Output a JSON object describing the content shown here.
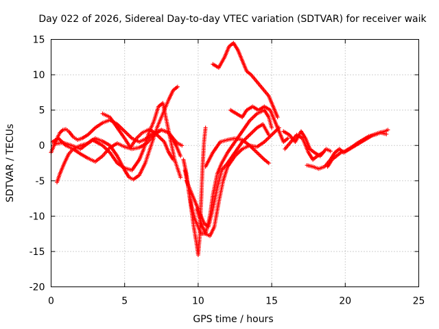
{
  "chart_data": {
    "type": "scatter",
    "title": "Day 022 of 2026, Sidereal Day-to-day VTEC variation (SDTVAR) for receiver waik",
    "xlabel": "GPS time / hours",
    "ylabel": "SDTVAR / TECUs",
    "xlim": [
      0,
      25
    ],
    "ylim": [
      -20,
      15
    ],
    "xticks": [
      0,
      5,
      10,
      15,
      20,
      25
    ],
    "yticks": [
      -20,
      -15,
      -10,
      -5,
      0,
      5,
      10,
      15
    ],
    "grid": true,
    "legend": "none",
    "marker": "+",
    "color": "#ff0000",
    "series": [
      {
        "points": [
          [
            0,
            -1
          ],
          [
            0.2,
            0
          ],
          [
            0.4,
            1
          ],
          [
            0.6,
            1.8
          ],
          [
            0.8,
            2.2
          ],
          [
            1.0,
            2.3
          ],
          [
            1.2,
            2.0
          ],
          [
            1.5,
            1.2
          ],
          [
            1.8,
            0.8
          ],
          [
            2.1,
            1.0
          ],
          [
            2.5,
            1.5
          ],
          [
            3.0,
            2.5
          ],
          [
            3.5,
            3.2
          ],
          [
            4.0,
            3.6
          ],
          [
            4.5,
            3.0
          ],
          [
            5.0,
            2.0
          ],
          [
            5.5,
            1.0
          ],
          [
            6.0,
            0.5
          ],
          [
            6.5,
            1.0
          ],
          [
            7.0,
            1.8
          ],
          [
            7.5,
            2.2
          ],
          [
            8.0,
            1.8
          ],
          [
            8.3,
            1.0
          ],
          [
            8.6,
            0.3
          ],
          [
            8.9,
            0.0
          ]
        ]
      },
      {
        "points": [
          [
            0.4,
            -5.2
          ],
          [
            0.6,
            -4.0
          ],
          [
            0.9,
            -2.5
          ],
          [
            1.2,
            -1.2
          ],
          [
            1.5,
            -0.5
          ],
          [
            2.0,
            0.0
          ],
          [
            2.5,
            0.3
          ],
          [
            3.0,
            1.0
          ],
          [
            3.5,
            0.6
          ],
          [
            4.0,
            0.0
          ],
          [
            4.5,
            -1.5
          ],
          [
            5.0,
            -3.5
          ],
          [
            5.3,
            -4.5
          ],
          [
            5.6,
            -4.8
          ],
          [
            6.0,
            -4.2
          ],
          [
            6.4,
            -2.5
          ],
          [
            6.8,
            0.0
          ],
          [
            7.2,
            2.5
          ],
          [
            7.6,
            4.5
          ],
          [
            8.0,
            6.5
          ],
          [
            8.3,
            7.8
          ],
          [
            8.6,
            8.3
          ]
        ]
      },
      {
        "points": [
          [
            0.1,
            0.5
          ],
          [
            0.5,
            1.0
          ],
          [
            1.0,
            0.0
          ],
          [
            1.5,
            -0.5
          ],
          [
            2.0,
            -1.2
          ],
          [
            2.5,
            -1.8
          ],
          [
            3.0,
            -2.3
          ],
          [
            3.5,
            -1.5
          ],
          [
            4.0,
            -0.3
          ],
          [
            4.5,
            0.3
          ],
          [
            5.0,
            -0.2
          ],
          [
            5.5,
            -0.5
          ],
          [
            6.0,
            -0.3
          ],
          [
            6.5,
            0.3
          ],
          [
            7.0,
            1.5
          ],
          [
            7.5,
            2.2
          ],
          [
            8.0,
            1.8
          ],
          [
            8.5,
            0.0
          ],
          [
            8.8,
            -1.5
          ]
        ]
      },
      {
        "points": [
          [
            0.2,
            0.2
          ],
          [
            0.8,
            0.4
          ],
          [
            1.4,
            0.0
          ],
          [
            2.0,
            -0.5
          ],
          [
            2.8,
            0.8
          ],
          [
            3.5,
            0.0
          ],
          [
            4.0,
            -1.0
          ],
          [
            4.5,
            -2.5
          ],
          [
            5.0,
            -3.2
          ],
          [
            5.5,
            -3.5
          ],
          [
            6.0,
            -2.0
          ],
          [
            6.3,
            -0.5
          ],
          [
            6.6,
            1.5
          ],
          [
            7.0,
            3.5
          ],
          [
            7.3,
            5.5
          ],
          [
            7.6,
            6.0
          ],
          [
            8.0,
            2.0
          ],
          [
            8.4,
            -2.0
          ],
          [
            8.8,
            -4.5
          ]
        ]
      },
      {
        "points": [
          [
            3.5,
            4.5
          ],
          [
            4.0,
            4.0
          ],
          [
            4.5,
            2.5
          ],
          [
            5.0,
            1.0
          ],
          [
            5.4,
            -0.3
          ],
          [
            5.8,
            1.0
          ],
          [
            6.2,
            1.8
          ],
          [
            6.7,
            2.3
          ],
          [
            7.2,
            1.5
          ],
          [
            7.7,
            0.5
          ],
          [
            8.0,
            -1.0
          ],
          [
            8.3,
            -2.0
          ]
        ]
      },
      {
        "points": [
          [
            9.1,
            -3.5
          ],
          [
            9.3,
            -5.5
          ],
          [
            9.5,
            -8.5
          ],
          [
            9.7,
            -11.5
          ],
          [
            9.9,
            -14.0
          ],
          [
            10.0,
            -15.5
          ],
          [
            10.1,
            -13.0
          ],
          [
            10.2,
            -8.0
          ],
          [
            10.3,
            -3.0
          ],
          [
            10.4,
            0.5
          ],
          [
            10.5,
            2.5
          ]
        ]
      },
      {
        "points": [
          [
            9.0,
            -2.0
          ],
          [
            9.2,
            -4.0
          ],
          [
            9.4,
            -7.0
          ],
          [
            9.6,
            -9.0
          ],
          [
            9.8,
            -10.5
          ],
          [
            10.0,
            -11.5
          ],
          [
            10.2,
            -12.5
          ],
          [
            10.5,
            -12.5
          ],
          [
            10.8,
            -10.0
          ],
          [
            11.0,
            -7.0
          ],
          [
            11.3,
            -4.0
          ],
          [
            11.6,
            -2.5
          ],
          [
            12.0,
            -1.0
          ],
          [
            12.5,
            0.5
          ],
          [
            13.0,
            2.0
          ],
          [
            13.5,
            3.5
          ],
          [
            14.0,
            4.5
          ],
          [
            14.5,
            5.0
          ],
          [
            14.8,
            4.0
          ],
          [
            15.0,
            2.5
          ]
        ]
      },
      {
        "points": [
          [
            9.2,
            -5.0
          ],
          [
            9.5,
            -6.5
          ],
          [
            9.8,
            -8.0
          ],
          [
            10.1,
            -9.5
          ],
          [
            10.4,
            -11.0
          ],
          [
            10.7,
            -11.5
          ],
          [
            11.0,
            -9.0
          ],
          [
            11.3,
            -6.0
          ],
          [
            11.6,
            -3.5
          ],
          [
            12.0,
            -2.5
          ],
          [
            12.5,
            -1.0
          ],
          [
            13.0,
            0.5
          ],
          [
            13.5,
            1.5
          ],
          [
            14.0,
            2.5
          ],
          [
            14.4,
            3.0
          ],
          [
            14.8,
            1.5
          ]
        ]
      },
      {
        "points": [
          [
            9.9,
            -9.0
          ],
          [
            10.2,
            -11.0
          ],
          [
            10.5,
            -12.5
          ],
          [
            10.8,
            -12.8
          ],
          [
            11.1,
            -11.5
          ],
          [
            11.4,
            -8.0
          ],
          [
            11.7,
            -5.0
          ],
          [
            12.0,
            -3.0
          ],
          [
            12.5,
            -1.5
          ],
          [
            13.0,
            -0.5
          ],
          [
            13.5,
            0.0
          ],
          [
            14.0,
            -0.2
          ],
          [
            14.5,
            0.5
          ],
          [
            15.0,
            1.5
          ],
          [
            15.5,
            2.5
          ]
        ]
      },
      {
        "points": [
          [
            10.5,
            -3.0
          ],
          [
            11.0,
            -1.0
          ],
          [
            11.5,
            0.5
          ],
          [
            12.0,
            0.8
          ],
          [
            12.5,
            1.0
          ],
          [
            13.0,
            0.8
          ],
          [
            13.5,
            0.0
          ],
          [
            14.0,
            -1.0
          ],
          [
            14.5,
            -2.0
          ],
          [
            14.8,
            -2.5
          ]
        ]
      },
      {
        "points": [
          [
            11.0,
            11.5
          ],
          [
            11.4,
            11.0
          ],
          [
            11.8,
            12.5
          ],
          [
            12.1,
            14.0
          ],
          [
            12.4,
            14.5
          ],
          [
            12.7,
            13.5
          ],
          [
            13.0,
            12.0
          ],
          [
            13.3,
            10.5
          ],
          [
            13.6,
            10.0
          ],
          [
            14.0,
            9.0
          ],
          [
            14.4,
            8.0
          ],
          [
            14.8,
            7.0
          ],
          [
            15.1,
            5.5
          ],
          [
            15.4,
            4.0
          ]
        ]
      },
      {
        "points": [
          [
            12.2,
            5.0
          ],
          [
            12.6,
            4.5
          ],
          [
            13.0,
            4.0
          ],
          [
            13.3,
            5.0
          ],
          [
            13.7,
            5.5
          ],
          [
            14.1,
            5.0
          ],
          [
            14.5,
            5.5
          ],
          [
            14.9,
            5.0
          ],
          [
            15.2,
            3.5
          ],
          [
            15.5,
            2.0
          ],
          [
            15.8,
            0.5
          ],
          [
            16.1,
            1.0
          ]
        ]
      },
      {
        "points": [
          [
            15.8,
            2.0
          ],
          [
            16.2,
            1.5
          ],
          [
            16.6,
            0.5
          ],
          [
            17.0,
            2.0
          ],
          [
            17.3,
            1.0
          ],
          [
            17.6,
            -0.5
          ],
          [
            17.9,
            -1.0
          ],
          [
            18.3,
            -1.5
          ],
          [
            18.7,
            -0.5
          ],
          [
            19.0,
            -0.8
          ]
        ]
      },
      {
        "points": [
          [
            15.9,
            -0.5
          ],
          [
            16.3,
            0.5
          ],
          [
            16.7,
            1.5
          ],
          [
            17.1,
            1.0
          ],
          [
            17.5,
            -1.0
          ],
          [
            17.8,
            -2.0
          ],
          [
            18.1,
            -1.5
          ],
          [
            18.5,
            -1.0
          ]
        ]
      },
      {
        "points": [
          [
            17.4,
            -2.8
          ],
          [
            17.8,
            -3.0
          ],
          [
            18.2,
            -3.3
          ],
          [
            18.6,
            -3.0
          ],
          [
            19.0,
            -2.0
          ],
          [
            19.3,
            -1.0
          ],
          [
            19.6,
            -0.5
          ],
          [
            19.9,
            -1.0
          ],
          [
            20.3,
            -0.5
          ],
          [
            20.7,
            0.0
          ],
          [
            21.1,
            0.5
          ],
          [
            21.5,
            1.0
          ],
          [
            21.9,
            1.5
          ],
          [
            22.3,
            1.8
          ],
          [
            22.7,
            2.0
          ],
          [
            22.9,
            2.2
          ]
        ]
      },
      {
        "points": [
          [
            18.8,
            -3.0
          ],
          [
            19.1,
            -2.0
          ],
          [
            19.4,
            -1.5
          ],
          [
            19.7,
            -1.0
          ],
          [
            20.0,
            -0.8
          ],
          [
            20.4,
            -0.3
          ],
          [
            20.8,
            0.3
          ],
          [
            21.2,
            0.8
          ],
          [
            21.6,
            1.3
          ],
          [
            22.0,
            1.5
          ],
          [
            22.4,
            1.8
          ],
          [
            22.8,
            1.6
          ]
        ]
      }
    ]
  }
}
